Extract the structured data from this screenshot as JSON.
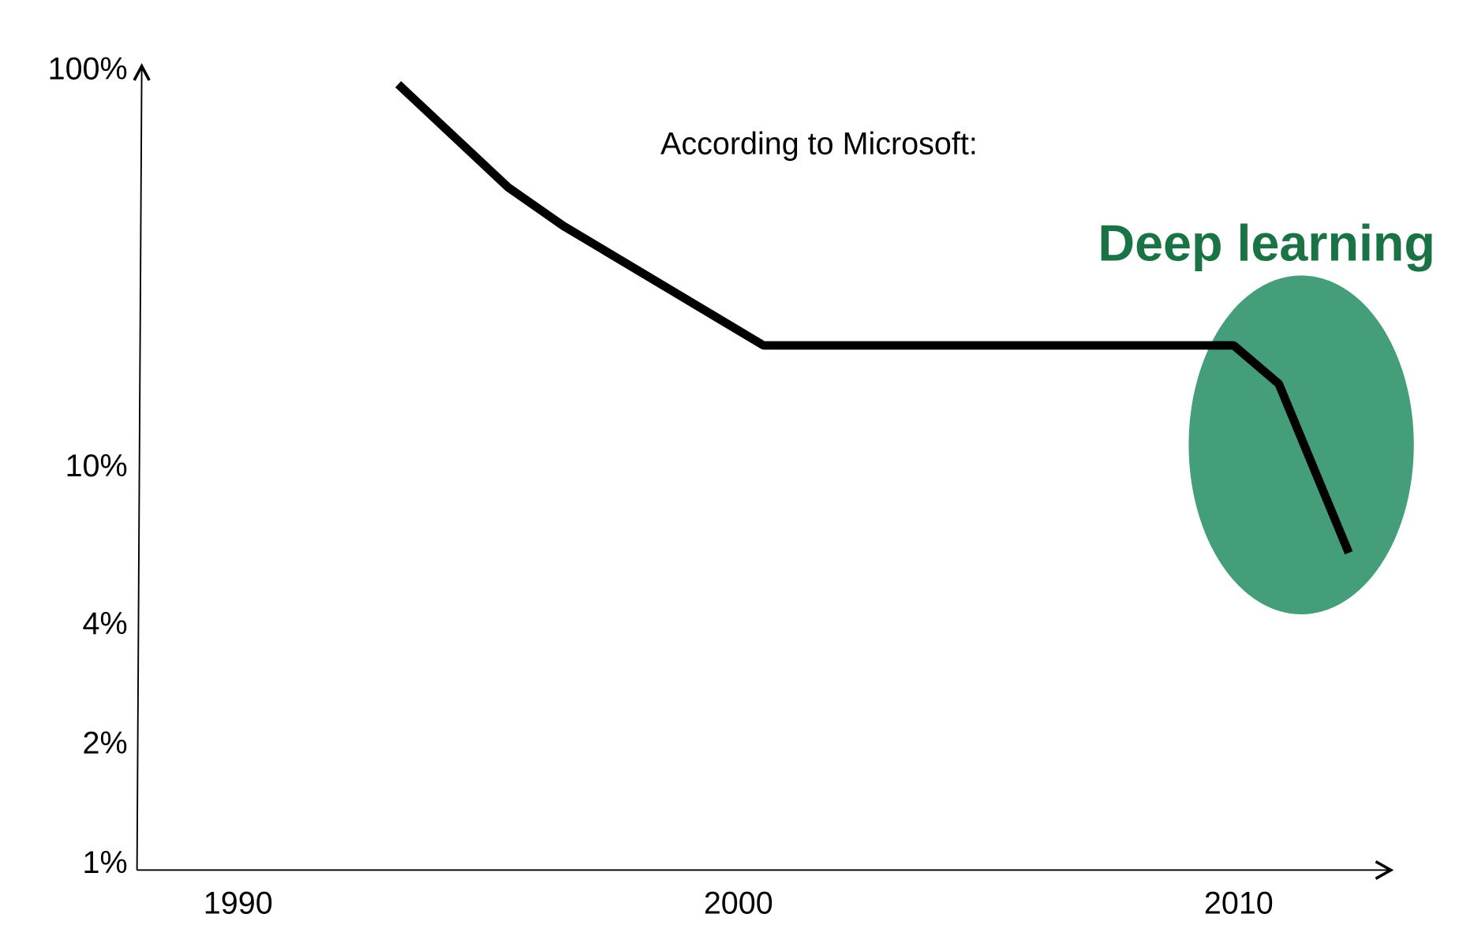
{
  "chart_data": {
    "type": "line",
    "title": "",
    "xlabel": "",
    "ylabel": "",
    "y_scale": "log",
    "xlim": [
      1987.5,
      2013.0
    ],
    "ylim": [
      1,
      100
    ],
    "grid": false,
    "x_ticks": [
      {
        "value": 1990,
        "label": "1990"
      },
      {
        "value": 2000,
        "label": "2000"
      },
      {
        "value": 2010,
        "label": "2010"
      }
    ],
    "y_ticks": [
      {
        "value": 1,
        "label": "1%"
      },
      {
        "value": 2,
        "label": "2%"
      },
      {
        "value": 4,
        "label": "4%"
      },
      {
        "value": 10,
        "label": "10%"
      },
      {
        "value": 100,
        "label": "100%"
      }
    ],
    "series": [
      {
        "color": "#000000",
        "points": [
          {
            "x": 1993.2,
            "y": 91
          },
          {
            "x": 1995.4,
            "y": 50
          },
          {
            "x": 1996.5,
            "y": 40
          },
          {
            "x": 2000.5,
            "y": 20
          },
          {
            "x": 2009.9,
            "y": 20
          },
          {
            "x": 2010.8,
            "y": 16
          },
          {
            "x": 2012.2,
            "y": 6
          }
        ]
      }
    ],
    "annotations": {
      "source_note": "According to Microsoft:",
      "highlight_label": "Deep learning",
      "highlight_label_color": "#1a7345",
      "highlight_fill_color": "#439e79",
      "highlight_x_range": [
        2009.0,
        2013.5
      ],
      "highlight_y_range": [
        4.2,
        30
      ]
    }
  }
}
